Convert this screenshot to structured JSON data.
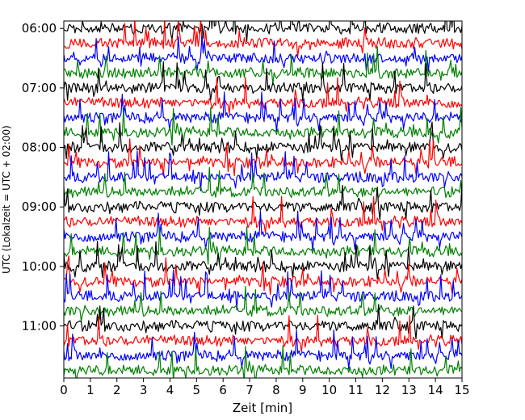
{
  "chart_data": {
    "type": "line",
    "title": "",
    "xlabel": "Zeit  [min]",
    "ylabel": "UTC (Lokalzeit = UTC + 02:00)",
    "xlim": [
      0,
      15
    ],
    "x_ticks": [
      0,
      1,
      2,
      3,
      4,
      5,
      6,
      7,
      8,
      9,
      10,
      11,
      12,
      13,
      14,
      15
    ],
    "x_tick_labels": [
      "0",
      "1",
      "2",
      "3",
      "4",
      "5",
      "6",
      "7",
      "8",
      "9",
      "10",
      "11",
      "12",
      "13",
      "14",
      "15"
    ],
    "y_inverted": true,
    "ylim_minutes_utc": [
      352.5,
      712.5
    ],
    "y_tick_minutes_utc": [
      360,
      420,
      480,
      540,
      600,
      660
    ],
    "y_tick_labels": [
      "06:00",
      "07:00",
      "08:00",
      "09:00",
      "10:00",
      "11:00"
    ],
    "row_interval_min": 15,
    "row_start_times_utc": [
      "06:00",
      "06:15",
      "06:30",
      "06:45",
      "07:00",
      "07:15",
      "07:30",
      "07:45",
      "08:00",
      "08:15",
      "08:30",
      "08:45",
      "09:00",
      "09:15",
      "09:30",
      "09:45",
      "10:00",
      "10:15",
      "10:30",
      "10:45",
      "11:00",
      "11:15",
      "11:30",
      "11:45"
    ],
    "row_colors": [
      "#000000",
      "#ff0000",
      "#0000ff",
      "#008000"
    ],
    "series_note": "seismic helicorder traces, one 15-minute row per trace, colors cycle black/red/blue/green",
    "legend": "none",
    "grid": false
  }
}
